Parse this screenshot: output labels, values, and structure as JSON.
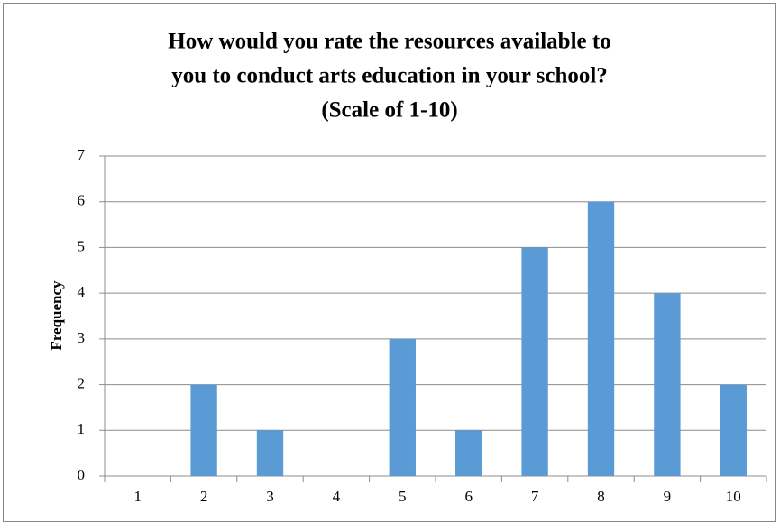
{
  "chart_data": {
    "type": "bar",
    "title": [
      "How would  you rate the resources available to",
      "you to conduct arts education in your school?",
      "(Scale of 1-10)"
    ],
    "y_label": "Frequency",
    "categories": [
      "1",
      "2",
      "3",
      "4",
      "5",
      "6",
      "7",
      "8",
      "9",
      "10"
    ],
    "values": [
      0,
      2,
      1,
      0,
      3,
      1,
      5,
      6,
      4,
      2
    ],
    "color": "#5b9bd5",
    "ylim": [
      0,
      7
    ],
    "yticks": [
      0,
      1,
      2,
      3,
      4,
      5,
      6,
      7
    ],
    "grid": true
  }
}
